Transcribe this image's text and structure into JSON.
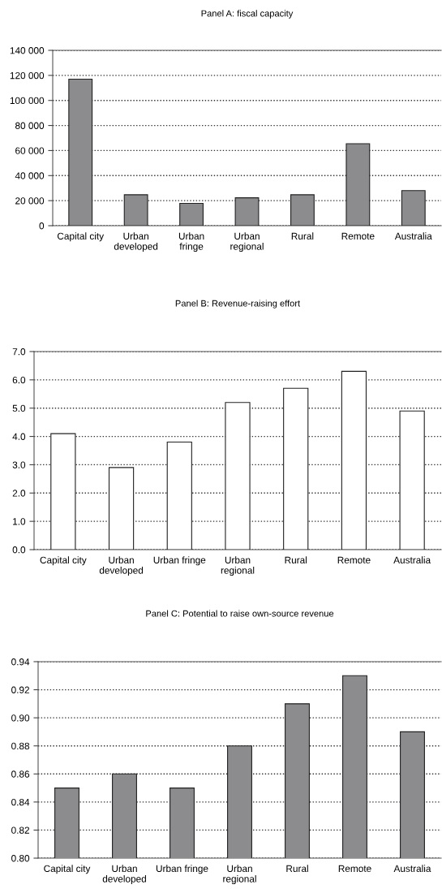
{
  "chart_data": [
    {
      "type": "bar",
      "title": "Panel A: fiscal capacity",
      "categories": [
        "Capital city",
        "Urban\ndeveloped",
        "Urban\nfringe",
        "Urban\nregional",
        "Rural",
        "Remote",
        "Australia"
      ],
      "values": [
        117000,
        24700,
        17800,
        22300,
        24700,
        65500,
        28000
      ],
      "color": "#8c8c8e",
      "ylim": [
        0,
        140000
      ],
      "yticks": [
        0,
        {
          "value": 20000,
          "label": "20 000"
        },
        {
          "value": 40000,
          "label": "40 000"
        },
        {
          "value": 60000,
          "label": "60 000"
        },
        {
          "value": 80000,
          "label": "80 000"
        },
        {
          "value": 100000,
          "label": "100 000"
        },
        {
          "value": 120000,
          "label": "120 000"
        },
        {
          "value": 140000,
          "label": "140 000"
        }
      ],
      "grid": "y",
      "line_style": "dotted"
    },
    {
      "type": "bar",
      "title": "Panel B: Revenue-raising effort",
      "categories": [
        "Capital city",
        "Urban\ndeveloped",
        "Urban fringe",
        "Urban\nregional",
        "Rural",
        "Remote",
        "Australia"
      ],
      "values": [
        4.1,
        2.9,
        3.8,
        5.2,
        5.7,
        6.3,
        4.9
      ],
      "color": "#ffffff",
      "ylim": [
        0,
        7
      ],
      "yticks": [
        {
          "value": 0,
          "label": "0.0"
        },
        {
          "value": 1,
          "label": "1.0"
        },
        {
          "value": 2,
          "label": "2.0"
        },
        {
          "value": 3,
          "label": "3.0"
        },
        {
          "value": 4,
          "label": "4.0"
        },
        {
          "value": 5,
          "label": "5.0"
        },
        {
          "value": 6,
          "label": "6.0"
        },
        {
          "value": 7,
          "label": "7.0"
        }
      ],
      "grid": "y",
      "line_style": "dotted"
    },
    {
      "type": "bar",
      "title": "Panel C: Potential to raise own-source revenue",
      "categories": [
        "Capital city",
        "Urban\ndeveloped",
        "Urban fringe",
        "Urban\nregional",
        "Rural",
        "Remote",
        "Australia"
      ],
      "values": [
        0.85,
        0.86,
        0.85,
        0.88,
        0.91,
        0.93,
        0.89
      ],
      "color": "#8c8c8e",
      "ylim": [
        0.8,
        0.94
      ],
      "yticks": [
        {
          "value": 0.8,
          "label": "0.80"
        },
        {
          "value": 0.82,
          "label": "0.82"
        },
        {
          "value": 0.84,
          "label": "0.84"
        },
        {
          "value": 0.86,
          "label": "0.86"
        },
        {
          "value": 0.88,
          "label": "0.88"
        },
        {
          "value": 0.9,
          "label": "0.90"
        },
        {
          "value": 0.92,
          "label": "0.92"
        },
        {
          "value": 0.94,
          "label": "0.94"
        }
      ],
      "grid": "y",
      "line_style": "dotted"
    }
  ]
}
